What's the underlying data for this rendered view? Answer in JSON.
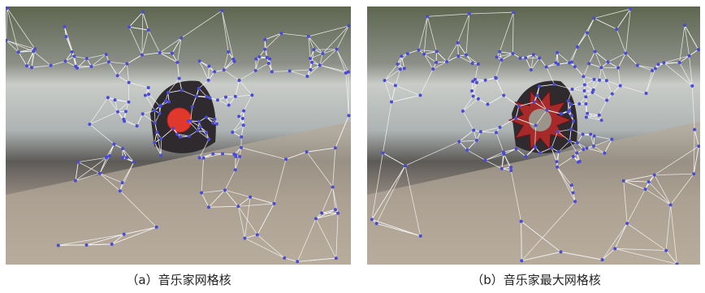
{
  "figures": [
    {
      "caption": "（a）音乐家网格核"
    },
    {
      "caption": "（b）音乐家最大网格核"
    }
  ]
}
